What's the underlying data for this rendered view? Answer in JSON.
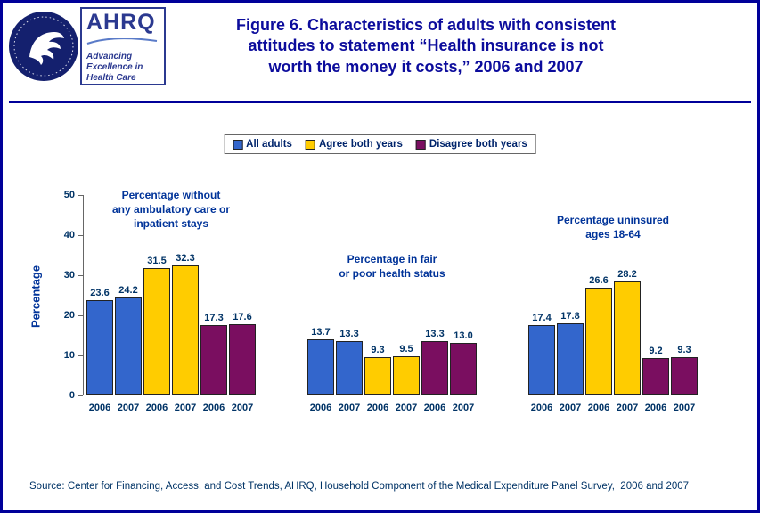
{
  "colors": {
    "border": "#000099",
    "title_text": "#0C0C9C",
    "label_text": "#003366",
    "bar_all_adults": "#3366CC",
    "bar_agree_both_years": "#FFCC00",
    "bar_disagree_both_years": "#7A0E60"
  },
  "header": {
    "title": "Figure 6. Characteristics of adults with consistent\nattitudes to statement “Health insurance is not\nworth the money it costs,” 2006 and 2007"
  },
  "logos": {
    "hhs_icon": "hhs-seal-icon",
    "ahrq_name": "AHRQ",
    "ahrq_tagline": "Advancing\nExcellence in\nHealth Care"
  },
  "legend": [
    {
      "label": "All adults",
      "color": "#3366CC"
    },
    {
      "label": "Agree both years",
      "color": "#FFCC00"
    },
    {
      "label": "Disagree both years",
      "color": "#7A0E60"
    }
  ],
  "chart_data": {
    "type": "bar",
    "title": "Figure 6. Characteristics of adults with consistent attitudes to statement “Health insurance is not worth the money it costs,” 2006 and 2007",
    "xlabel": "",
    "ylabel": "Percentage",
    "ylim": [
      0,
      50
    ],
    "yticks": [
      0,
      10,
      20,
      30,
      40,
      50
    ],
    "grid": false,
    "legend_position": "top-center",
    "series_names": [
      "All adults",
      "Agree both years",
      "Disagree both years"
    ],
    "series_colors": [
      "#3366CC",
      "#FFCC00",
      "#7A0E60"
    ],
    "x_labels_per_bar": [
      "2006",
      "2007"
    ],
    "groups": [
      {
        "caption": "Percentage without\nany ambulatory care or\ninpatient stays",
        "bars": [
          {
            "series": "All adults",
            "year": "2006",
            "value": 23.6
          },
          {
            "series": "All adults",
            "year": "2007",
            "value": 24.2
          },
          {
            "series": "Agree both years",
            "year": "2006",
            "value": 31.5
          },
          {
            "series": "Agree both years",
            "year": "2007",
            "value": 32.3
          },
          {
            "series": "Disagree both years",
            "year": "2006",
            "value": 17.3
          },
          {
            "series": "Disagree both years",
            "year": "2007",
            "value": 17.6
          }
        ]
      },
      {
        "caption": "Percentage in fair\nor poor health status",
        "bars": [
          {
            "series": "All adults",
            "year": "2006",
            "value": 13.7
          },
          {
            "series": "All adults",
            "year": "2007",
            "value": 13.3
          },
          {
            "series": "Agree both years",
            "year": "2006",
            "value": 9.3
          },
          {
            "series": "Agree both years",
            "year": "2007",
            "value": 9.5
          },
          {
            "series": "Disagree both years",
            "year": "2006",
            "value": 13.3
          },
          {
            "series": "Disagree both years",
            "year": "2007",
            "value": 13.0
          }
        ]
      },
      {
        "caption": "Percentage uninsured\nages 18-64",
        "bars": [
          {
            "series": "All adults",
            "year": "2006",
            "value": 17.4
          },
          {
            "series": "All adults",
            "year": "2007",
            "value": 17.8
          },
          {
            "series": "Agree both years",
            "year": "2006",
            "value": 26.6
          },
          {
            "series": "Agree both years",
            "year": "2007",
            "value": 28.2
          },
          {
            "series": "Disagree both years",
            "year": "2006",
            "value": 9.2
          },
          {
            "series": "Disagree both years",
            "year": "2007",
            "value": 9.3
          }
        ]
      }
    ]
  },
  "footer": {
    "source": "Source: Center for Financing, Access, and Cost Trends, AHRQ, Household Component of the Medical Expenditure Panel Survey,  2006 and 2007"
  }
}
